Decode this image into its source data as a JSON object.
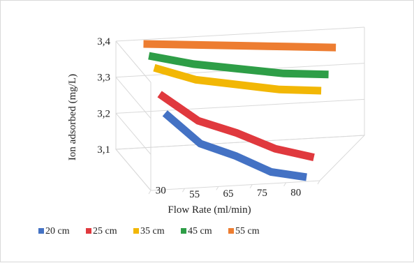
{
  "chart_data": {
    "type": "line",
    "variant": "3d",
    "title": "",
    "xlabel": "Flow Rate (ml/min)",
    "ylabel": "Ion adsorbed (mg/L)",
    "categories": [
      "30",
      "55",
      "65",
      "75",
      "80"
    ],
    "yticks": [
      "3,1",
      "3,2",
      "3,3",
      "3,4"
    ],
    "ylim": [
      3.1,
      3.4
    ],
    "grid": true,
    "legend_position": "bottom",
    "series": [
      {
        "name": "20 cm",
        "color": "#4472c4",
        "values": [
          3.3,
          3.21,
          3.17,
          3.12,
          3.1
        ]
      },
      {
        "name": "25 cm",
        "color": "#e0393e",
        "values": [
          3.33,
          3.25,
          3.21,
          3.16,
          3.13
        ]
      },
      {
        "name": "35 cm",
        "color": "#f2b705",
        "values": [
          3.38,
          3.34,
          3.32,
          3.3,
          3.29
        ]
      },
      {
        "name": "45 cm",
        "color": "#2e9e47",
        "values": [
          3.39,
          3.36,
          3.34,
          3.32,
          3.31
        ]
      },
      {
        "name": "55 cm",
        "color": "#ed7d31",
        "values": [
          3.4,
          3.39,
          3.38,
          3.37,
          3.36
        ]
      }
    ]
  }
}
